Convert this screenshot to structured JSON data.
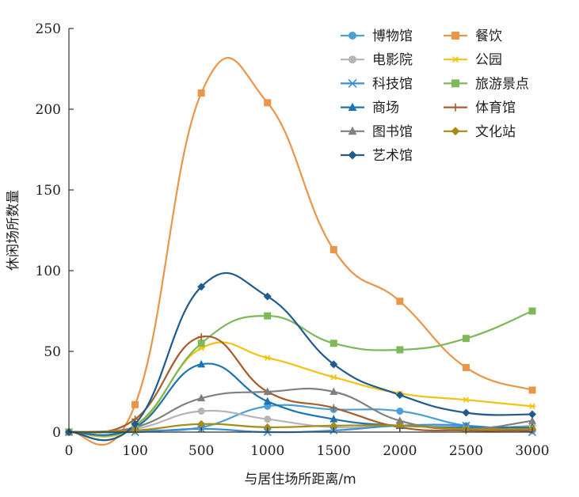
{
  "chart_data": {
    "type": "line",
    "xlabel": "与居住场所距离/m",
    "ylabel": "休闲场所数量",
    "categories": [
      "0",
      "100",
      "500",
      "1000",
      "1500",
      "2000",
      "2500",
      "3000"
    ],
    "ylim": [
      0,
      250
    ],
    "yticks": [
      0,
      50,
      100,
      150,
      200,
      250
    ],
    "grid": false,
    "legend_position": "top-right",
    "series": [
      {
        "name": "博物馆",
        "marker": "circle",
        "color": "#4a9fd6",
        "values": [
          0,
          1,
          3,
          16,
          14,
          13,
          4,
          1
        ]
      },
      {
        "name": "餐饮",
        "marker": "square",
        "color": "#e9954a",
        "values": [
          0,
          17,
          210,
          204,
          113,
          81,
          40,
          26
        ]
      },
      {
        "name": "电影院",
        "marker": "circle",
        "color": "#b5b5b5",
        "values": [
          0,
          2,
          13,
          8,
          3,
          4,
          2,
          4
        ]
      },
      {
        "name": "公园",
        "marker": "star",
        "color": "#f2c314",
        "values": [
          0,
          3,
          52,
          46,
          34,
          24,
          20,
          16
        ]
      },
      {
        "name": "科技馆",
        "marker": "x",
        "color": "#3b8fd6",
        "values": [
          0,
          0,
          2,
          0,
          1,
          4,
          4,
          0
        ]
      },
      {
        "name": "旅游景点",
        "marker": "square",
        "color": "#7db85a",
        "values": [
          0,
          4,
          55,
          72,
          55,
          51,
          58,
          75
        ]
      },
      {
        "name": "商场",
        "marker": "triangle",
        "color": "#1d75b0",
        "values": [
          0,
          3,
          42,
          19,
          8,
          4,
          3,
          3
        ]
      },
      {
        "name": "体育馆",
        "marker": "plus",
        "color": "#a85d2a",
        "values": [
          0,
          8,
          59,
          25,
          15,
          3,
          1,
          1
        ]
      },
      {
        "name": "图书馆",
        "marker": "triangle",
        "color": "#808080",
        "values": [
          0,
          3,
          21,
          25,
          25,
          7,
          2,
          7
        ]
      },
      {
        "name": "文化站",
        "marker": "diamond",
        "color": "#a68b14",
        "values": [
          0,
          1,
          5,
          3,
          4,
          4,
          2,
          2
        ]
      },
      {
        "name": "艺术馆",
        "marker": "diamond",
        "color": "#1f5b8c",
        "values": [
          0,
          5,
          90,
          84,
          42,
          23,
          12,
          11
        ]
      }
    ]
  }
}
